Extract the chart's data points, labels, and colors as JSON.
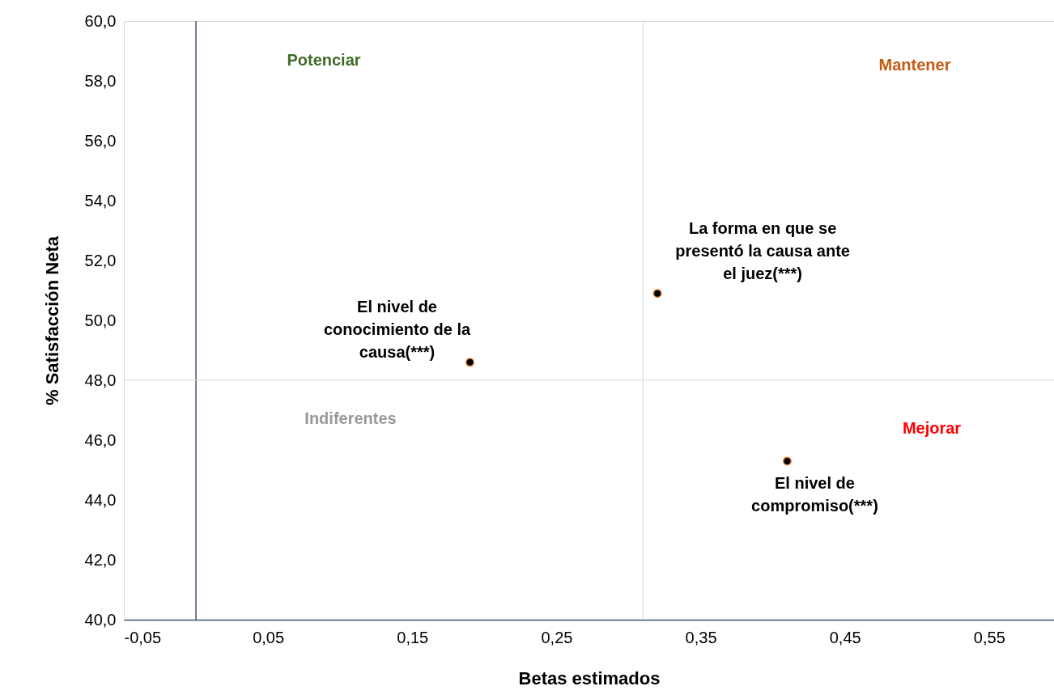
{
  "chart_data": {
    "type": "scatter",
    "xlabel": "Betas estimados",
    "ylabel": "% Satisfacción Neta",
    "x": [
      0.19,
      0.32,
      0.41
    ],
    "series": [
      {
        "color": "#000000",
        "values": [
          48.6,
          50.9,
          45.3
        ]
      }
    ],
    "marker": "circle",
    "xlim": [
      -0.05,
      0.595
    ],
    "xticks": [
      {
        "value": -0.05,
        "label": "-0,05"
      },
      {
        "value": 0.05,
        "label": "0,05"
      },
      {
        "value": 0.15,
        "label": "0,15"
      },
      {
        "value": 0.25,
        "label": "0,25"
      },
      {
        "value": 0.35,
        "label": "0,35"
      },
      {
        "value": 0.45,
        "label": "0,45"
      },
      {
        "value": 0.55,
        "label": "0,55"
      }
    ],
    "ylim": [
      40,
      60
    ],
    "yticks": [
      {
        "value": 40,
        "label": "40,0"
      },
      {
        "value": 42,
        "label": "42,0"
      },
      {
        "value": 44,
        "label": "44,0"
      },
      {
        "value": 46,
        "label": "46,0"
      },
      {
        "value": 48,
        "label": "48,0"
      },
      {
        "value": 50,
        "label": "50,0"
      },
      {
        "value": 52,
        "label": "52,0"
      },
      {
        "value": 54,
        "label": "54,0"
      },
      {
        "value": 56,
        "label": "56,0"
      },
      {
        "value": 58,
        "label": "58,0"
      },
      {
        "value": 60,
        "label": "60,0"
      }
    ],
    "ref_lines": [
      {
        "axis": "x",
        "value": 0,
        "color": "#44546a"
      },
      {
        "axis": "x",
        "value": 0.31,
        "color": "#d9d9d9"
      },
      {
        "axis": "y",
        "value": 48,
        "color": "#d9d9d9"
      }
    ],
    "annotations": [
      "Potenciar",
      "Mantener",
      "Indiferentes",
      "Mejorar",
      {
        "text": "El nivel de conocimiento de la causa(***)",
        "x": 0.19,
        "y": 48.6
      },
      {
        "text": "La forma en que se presentó la causa ante el juez(***)",
        "x": 0.32,
        "y": 50.9
      },
      {
        "text": "El nivel de compromiso(***)",
        "x": 0.41,
        "y": 45.3
      }
    ],
    "grid": false
  }
}
